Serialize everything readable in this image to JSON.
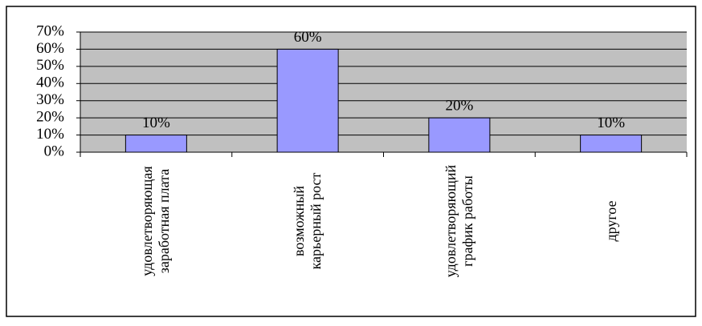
{
  "chart_data": {
    "type": "bar",
    "categories": [
      "удовлетворяющая заработная плата",
      "возможный карьерный рост",
      "удовлетворяющий график работы",
      "другое"
    ],
    "values": [
      10,
      60,
      20,
      10
    ],
    "value_labels": [
      "10%",
      "60%",
      "20%",
      "10%"
    ],
    "color": "#9999ff",
    "ylim": [
      0,
      70
    ],
    "yticks": [
      {
        "value": 0,
        "label": "0%"
      },
      {
        "value": 10,
        "label": "10%"
      },
      {
        "value": 20,
        "label": "20%"
      },
      {
        "value": 30,
        "label": "30%"
      },
      {
        "value": 40,
        "label": "40%"
      },
      {
        "value": 50,
        "label": "50%"
      },
      {
        "value": 60,
        "label": "60%"
      },
      {
        "value": 70,
        "label": "70%"
      }
    ],
    "grid": true
  }
}
